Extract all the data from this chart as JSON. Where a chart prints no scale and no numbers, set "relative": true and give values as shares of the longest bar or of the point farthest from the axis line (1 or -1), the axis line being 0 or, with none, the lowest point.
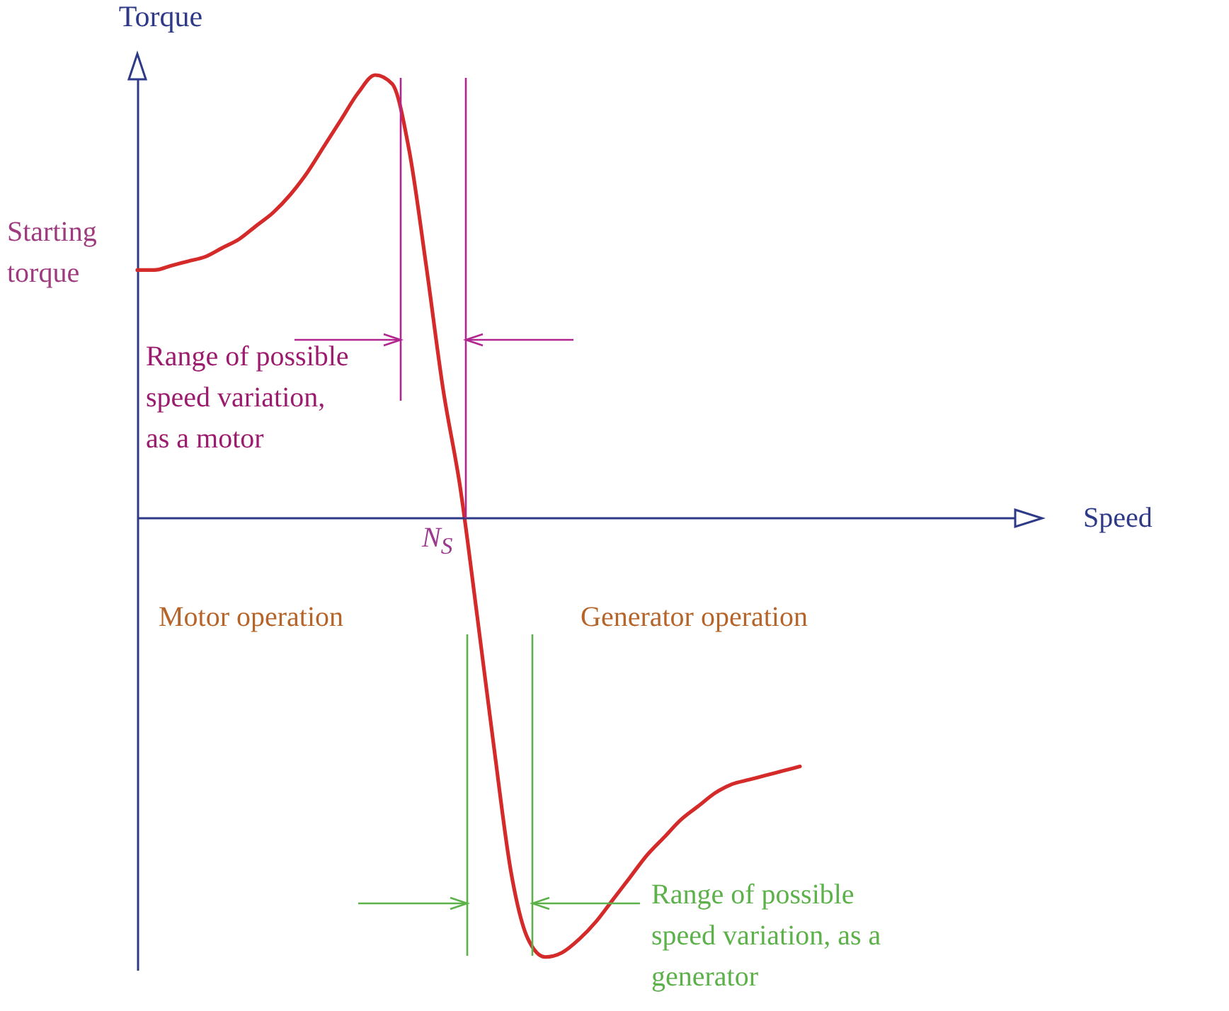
{
  "chart_data": {
    "type": "line",
    "ylabel": "Torque",
    "relative": true,
    "line_style": "solid",
    "ref_lines": [
      {
        "axis": "y",
        "value": 0,
        "color": "#2e3a87"
      }
    ],
    "annotations": [
      "Speed",
      "Starting\ntorque",
      "Range of possible\nspeed variation,\nas a motor",
      "N$_{S}$",
      "Motor operation",
      "Generator operation",
      "Range of possible\nspeed variation, as a\ngenerator"
    ],
    "categories": [
      null,
      null,
      null,
      null,
      null,
      null,
      null,
      null,
      null,
      null,
      null,
      null,
      null,
      null,
      null,
      null,
      null,
      null,
      null,
      null,
      null,
      null,
      null,
      null,
      null,
      null,
      null,
      null,
      null,
      null,
      null,
      null,
      null,
      null,
      null,
      null,
      null,
      null,
      null,
      null
    ],
    "series": [
      {
        "color": "#d42a2a",
        "values": [
          0.56,
          0.56,
          0.57,
          0.58,
          0.59,
          0.61,
          0.63,
          0.66,
          0.69,
          0.73,
          0.78,
          0.84,
          0.9,
          0.96,
          1,
          0.98,
          0.83,
          0.57,
          0.29,
          0.07,
          -0.22,
          -0.52,
          -0.8,
          -0.95,
          -0.99,
          -0.98,
          -0.95,
          -0.91,
          -0.86,
          -0.81,
          -0.76,
          -0.72,
          -0.68,
          -0.65,
          -0.62,
          -0.6,
          -0.59,
          -0.58,
          -0.57,
          -0.56
        ]
      }
    ]
  }
}
